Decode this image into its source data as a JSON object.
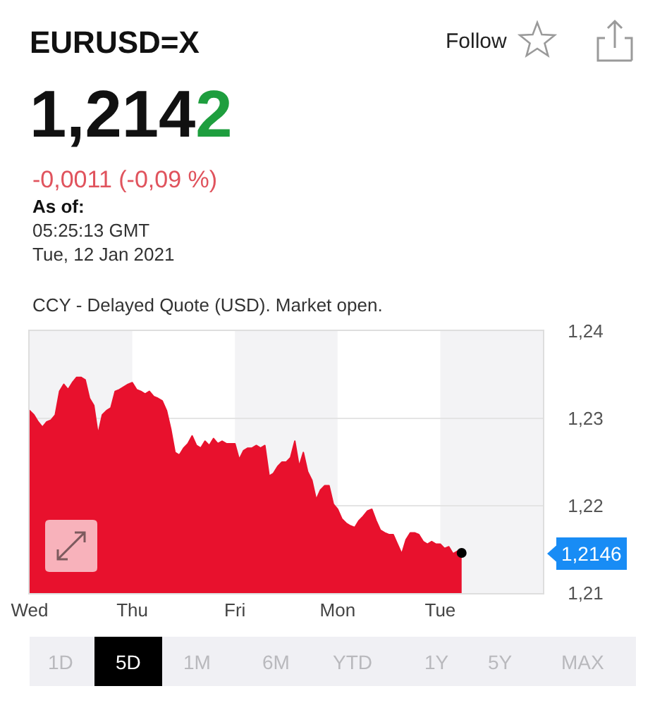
{
  "chart_data": {
    "type": "area",
    "title": "EURUSD=X",
    "annotations": [
      "Follow",
      "1,2142",
      "-0,0011 (-0,09 %)",
      "As of:",
      "05:25:13 GMT",
      "Tue, 12 Jan 2021",
      "CCY - Delayed Quote (USD). Market open.",
      "1,2146",
      "1D",
      "5D",
      "1M",
      "6M",
      "YTD",
      "1Y",
      "5Y",
      "MAX"
    ],
    "categories": [
      "Wed",
      null,
      null,
      null,
      null,
      null,
      null,
      null,
      null,
      null,
      null,
      null,
      null,
      null,
      null,
      null,
      null,
      null,
      null,
      null,
      null,
      null,
      null,
      null,
      "Thu",
      null,
      null,
      null,
      null,
      null,
      null,
      null,
      null,
      null,
      null,
      null,
      null,
      null,
      null,
      null,
      null,
      null,
      null,
      null,
      null,
      null,
      null,
      null,
      "Fri",
      null,
      null,
      null,
      null,
      null,
      null,
      null,
      null,
      null,
      null,
      null,
      null,
      null,
      null,
      null,
      null,
      null,
      null,
      null,
      null,
      null,
      null,
      null,
      "Mon",
      null,
      null,
      null,
      null,
      null,
      null,
      null,
      null,
      null,
      null,
      null,
      null,
      null,
      null,
      null,
      null,
      null,
      null,
      null,
      null,
      null,
      null,
      null,
      "Tue",
      null,
      null,
      null,
      null,
      null,
      null,
      null,
      null,
      null,
      null,
      null,
      null,
      null,
      null,
      null,
      null,
      null,
      null,
      null,
      null,
      null,
      null,
      null,
      null
    ],
    "series": [
      {
        "color": "#e8112d",
        "values": [
          1.2309,
          1.2304,
          1.2296,
          1.229,
          1.2296,
          1.2298,
          1.2304,
          1.2331,
          1.2339,
          1.2333,
          1.2341,
          1.2347,
          1.2347,
          1.2344,
          1.2323,
          1.2315,
          1.2282,
          1.2304,
          1.2309,
          1.2312,
          1.2331,
          1.2333,
          1.2336,
          1.2339,
          1.2341,
          1.2333,
          1.2331,
          1.2328,
          1.2331,
          1.2325,
          1.2323,
          1.232,
          1.2309,
          1.2288,
          1.2261,
          1.2258,
          1.2266,
          1.2271,
          1.228,
          1.2269,
          1.2266,
          1.2274,
          1.2269,
          1.2277,
          1.2271,
          1.2274,
          1.2271,
          1.2271,
          1.2271,
          1.2253,
          1.2263,
          1.2266,
          1.2266,
          1.2269,
          1.2266,
          1.2269,
          1.2234,
          1.2237,
          1.2245,
          1.225,
          1.225,
          1.2255,
          1.2274,
          1.2245,
          1.2261,
          1.2239,
          1.2229,
          1.2207,
          1.2218,
          1.2223,
          1.2223,
          1.2202,
          1.2196,
          1.2185,
          1.218,
          1.2177,
          1.2175,
          1.2183,
          1.2188,
          1.2194,
          1.2196,
          1.2183,
          1.2172,
          1.2169,
          1.2167,
          1.2167,
          1.2156,
          1.2145,
          1.2161,
          1.2169,
          1.2169,
          1.2167,
          1.2159,
          1.2156,
          1.2159,
          1.2156,
          1.2156,
          1.2151,
          1.2153,
          1.2145,
          1.2148,
          1.2146,
          null,
          null,
          null,
          null,
          null,
          null,
          null,
          null,
          null,
          null,
          null,
          null,
          null,
          null,
          null,
          null,
          null,
          null,
          null
        ]
      },
      {
        "type": "scatter",
        "color": "#000000",
        "values": [
          null,
          null,
          null,
          null,
          null,
          null,
          null,
          null,
          null,
          null,
          null,
          null,
          null,
          null,
          null,
          null,
          null,
          null,
          null,
          null,
          null,
          null,
          null,
          null,
          null,
          null,
          null,
          null,
          null,
          null,
          null,
          null,
          null,
          null,
          null,
          null,
          null,
          null,
          null,
          null,
          null,
          null,
          null,
          null,
          null,
          null,
          null,
          null,
          null,
          null,
          null,
          null,
          null,
          null,
          null,
          null,
          null,
          null,
          null,
          null,
          null,
          null,
          null,
          null,
          null,
          null,
          null,
          null,
          null,
          null,
          null,
          null,
          null,
          null,
          null,
          null,
          null,
          null,
          null,
          null,
          null,
          null,
          null,
          null,
          null,
          null,
          null,
          null,
          null,
          null,
          null,
          null,
          null,
          null,
          null,
          null,
          null,
          null,
          null,
          null,
          null,
          1.2146,
          null,
          null,
          null,
          null,
          null,
          null,
          null,
          null,
          null,
          null,
          null,
          null,
          null,
          null,
          null,
          null,
          null,
          null,
          null
        ]
      }
    ],
    "ylim": [
      1.21,
      1.24
    ],
    "yticks": [
      {
        "value": 1.21,
        "label": "1,21"
      },
      {
        "value": 1.22,
        "label": "1,22"
      },
      {
        "value": 1.23,
        "label": "1,23"
      },
      {
        "value": 1.24,
        "label": "1,24"
      }
    ],
    "grid": "y",
    "bands": [
      {
        "axis": "x",
        "from": "Wed",
        "to": "Thu",
        "color": "#f3f3f5"
      },
      {
        "axis": "x",
        "from": "Fri",
        "to": "Mon",
        "color": "#f3f3f5"
      }
    ]
  }
}
